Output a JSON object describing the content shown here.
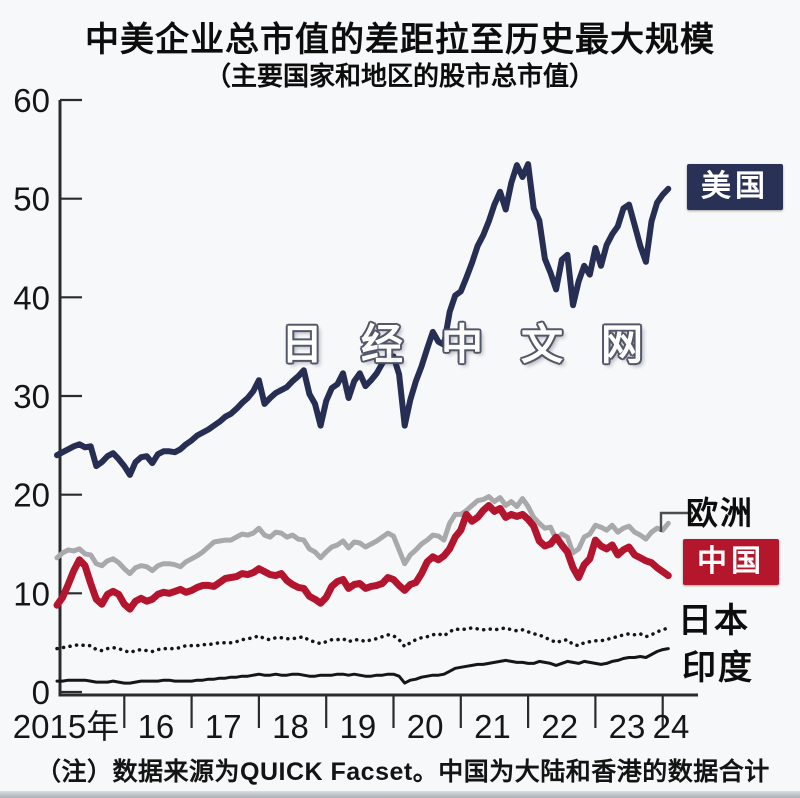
{
  "title": "中美企业总市值的差距拉至历史最大规模",
  "subtitle": "（主要国家和地区的股市总市值）",
  "watermark": "日经中文网",
  "footnote": "（注）数据来源为QUICK Facset。中国为大陆和香港的数据合计",
  "colors": {
    "us_navy": "#262e54",
    "china_red": "#b3142e",
    "europe_gray": "#a9a9ab",
    "black": "#161616",
    "axis": "#2b2b2b"
  },
  "chart_data": {
    "type": "line",
    "title": "中美企业总市值的差距拉至历史最大规模",
    "subtitle": "（主要国家和地区的股市总市值）",
    "x_start_year": 2015,
    "x_step_months": 1,
    "x_tick_labels": [
      "2015年",
      "16",
      "17",
      "18",
      "19",
      "20",
      "21",
      "22",
      "23",
      "24"
    ],
    "y_ticks": [
      0,
      10,
      20,
      30,
      40,
      50,
      60
    ],
    "ylim": [
      0,
      60
    ],
    "grid": false,
    "legend_position": "right-inline-labels",
    "series": [
      {
        "id": "us",
        "name": "美国",
        "color": "#262e54",
        "style": "solid",
        "width": 6,
        "values": [
          24.0,
          24.3,
          24.6,
          24.9,
          25.1,
          24.8,
          24.9,
          22.9,
          23.3,
          23.9,
          24.2,
          23.6,
          22.9,
          22.0,
          23.3,
          23.8,
          23.9,
          23.2,
          24.1,
          24.4,
          24.4,
          24.3,
          24.6,
          25.1,
          25.5,
          26.0,
          26.3,
          26.6,
          27.0,
          27.4,
          27.9,
          28.2,
          28.7,
          29.3,
          29.8,
          30.5,
          31.6,
          29.2,
          29.8,
          30.3,
          30.6,
          30.9,
          31.5,
          32.0,
          32.6,
          30.2,
          29.2,
          27.0,
          29.5,
          30.8,
          31.2,
          32.3,
          29.8,
          31.5,
          32.3,
          31.0,
          31.6,
          32.3,
          33.3,
          34.0,
          34.0,
          32.2,
          27.0,
          29.6,
          31.5,
          33.0,
          34.8,
          36.5,
          35.5,
          35.2,
          38.5,
          40.2,
          40.6,
          42.0,
          43.5,
          45.2,
          46.3,
          47.7,
          49.4,
          50.7,
          48.9,
          51.6,
          53.4,
          52.2,
          53.5,
          49.0,
          47.8,
          43.9,
          42.5,
          40.8,
          43.8,
          44.3,
          39.2,
          41.6,
          43.2,
          42.3,
          45.0,
          43.2,
          45.3,
          46.4,
          47.2,
          49.0,
          49.4,
          47.3,
          45.2,
          43.6,
          47.7,
          49.6,
          50.4,
          51.0
        ]
      },
      {
        "id": "europe",
        "name": "欧洲",
        "color": "#a9a9ab",
        "style": "solid",
        "width": 5,
        "values": [
          13.6,
          14.1,
          14.4,
          14.3,
          14.5,
          14.0,
          13.9,
          13.0,
          12.8,
          13.3,
          13.5,
          13.1,
          12.5,
          12.0,
          12.6,
          12.8,
          12.7,
          12.3,
          12.8,
          13.0,
          13.0,
          12.9,
          12.7,
          13.2,
          13.5,
          13.8,
          14.2,
          14.7,
          15.2,
          15.3,
          15.4,
          15.4,
          15.7,
          16.0,
          15.9,
          16.1,
          16.6,
          15.9,
          15.7,
          16.2,
          16.1,
          15.7,
          15.9,
          15.5,
          15.4,
          14.5,
          14.2,
          13.6,
          14.2,
          14.7,
          14.9,
          15.3,
          14.6,
          15.2,
          15.1,
          14.7,
          15.0,
          15.3,
          15.7,
          16.1,
          15.8,
          14.4,
          13.0,
          13.9,
          14.4,
          15.0,
          15.4,
          15.9,
          15.8,
          15.4,
          17.1,
          18.0,
          18.0,
          18.4,
          18.9,
          19.4,
          19.5,
          19.8,
          19.3,
          19.7,
          18.9,
          19.3,
          18.8,
          19.6,
          18.8,
          17.7,
          17.1,
          16.6,
          16.7,
          15.5,
          16.0,
          15.7,
          14.1,
          14.5,
          15.7,
          16.0,
          16.9,
          16.7,
          16.4,
          16.9,
          16.2,
          16.6,
          16.8,
          16.2,
          15.9,
          15.5,
          16.2,
          16.6,
          16.4,
          17.1
        ]
      },
      {
        "id": "china",
        "name": "中国",
        "color": "#b3142e",
        "style": "solid",
        "width": 7,
        "values": [
          8.8,
          9.6,
          10.9,
          12.3,
          13.4,
          12.8,
          11.0,
          9.4,
          8.9,
          9.9,
          10.2,
          9.9,
          8.9,
          8.4,
          9.2,
          9.5,
          9.2,
          9.4,
          9.9,
          10.1,
          10.0,
          10.2,
          10.4,
          10.1,
          10.3,
          10.6,
          10.8,
          10.8,
          10.7,
          11.1,
          11.5,
          11.6,
          11.7,
          12.0,
          11.9,
          12.1,
          12.5,
          12.2,
          11.9,
          11.8,
          12.0,
          11.3,
          10.9,
          10.6,
          10.5,
          9.7,
          9.4,
          9.0,
          9.6,
          10.7,
          11.2,
          11.4,
          10.5,
          10.9,
          11.0,
          10.5,
          10.7,
          10.8,
          11.0,
          11.6,
          11.4,
          10.8,
          10.3,
          10.9,
          11.1,
          12.0,
          13.2,
          13.7,
          13.4,
          13.8,
          14.5,
          15.7,
          16.4,
          18.0,
          17.3,
          17.7,
          18.4,
          18.9,
          18.3,
          18.6,
          17.7,
          18.0,
          17.8,
          18.0,
          17.5,
          16.8,
          15.3,
          14.8,
          15.0,
          15.7,
          14.9,
          14.2,
          12.6,
          11.6,
          12.9,
          13.5,
          15.4,
          14.8,
          14.5,
          14.9,
          13.9,
          14.4,
          14.7,
          13.9,
          13.6,
          13.3,
          13.1,
          12.6,
          12.2,
          11.8
        ]
      },
      {
        "id": "japan",
        "name": "日本",
        "color": "#161616",
        "style": "dotted",
        "width": 3.5,
        "values": [
          4.4,
          4.5,
          4.6,
          4.7,
          4.8,
          4.7,
          4.7,
          4.3,
          4.2,
          4.4,
          4.5,
          4.4,
          4.2,
          4.0,
          4.2,
          4.3,
          4.2,
          4.1,
          4.3,
          4.4,
          4.4,
          4.4,
          4.5,
          4.7,
          4.7,
          4.7,
          4.8,
          4.8,
          4.9,
          5.0,
          5.0,
          5.0,
          5.1,
          5.3,
          5.4,
          5.5,
          5.7,
          5.4,
          5.3,
          5.5,
          5.5,
          5.4,
          5.4,
          5.5,
          5.6,
          5.2,
          5.1,
          4.9,
          5.1,
          5.3,
          5.3,
          5.4,
          5.1,
          5.3,
          5.3,
          5.1,
          5.3,
          5.4,
          5.6,
          5.8,
          5.7,
          5.3,
          4.6,
          5.0,
          5.3,
          5.5,
          5.6,
          5.8,
          5.9,
          5.7,
          6.1,
          6.4,
          6.3,
          6.4,
          6.5,
          6.4,
          6.3,
          6.4,
          6.3,
          6.4,
          6.5,
          6.3,
          6.2,
          6.3,
          6.1,
          5.9,
          5.8,
          5.5,
          5.3,
          5.0,
          5.2,
          5.3,
          4.8,
          4.7,
          5.0,
          5.1,
          5.2,
          5.2,
          5.3,
          5.5,
          5.6,
          5.8,
          5.9,
          5.8,
          5.9,
          5.6,
          5.8,
          6.1,
          6.3,
          6.5
        ]
      },
      {
        "id": "india",
        "name": "印度",
        "color": "#161616",
        "style": "solid",
        "width": 3,
        "values": [
          1.1,
          1.1,
          1.2,
          1.2,
          1.2,
          1.2,
          1.1,
          1.0,
          1.0,
          1.0,
          1.1,
          1.0,
          0.9,
          0.9,
          1.0,
          1.1,
          1.1,
          1.1,
          1.1,
          1.2,
          1.2,
          1.1,
          1.1,
          1.1,
          1.1,
          1.2,
          1.2,
          1.3,
          1.3,
          1.4,
          1.4,
          1.5,
          1.5,
          1.6,
          1.6,
          1.7,
          1.8,
          1.7,
          1.7,
          1.8,
          1.7,
          1.7,
          1.8,
          1.8,
          1.7,
          1.6,
          1.6,
          1.7,
          1.7,
          1.7,
          1.8,
          1.8,
          1.7,
          1.8,
          1.7,
          1.6,
          1.6,
          1.7,
          1.7,
          1.8,
          1.8,
          1.6,
          0.9,
          1.2,
          1.3,
          1.5,
          1.6,
          1.7,
          1.7,
          1.8,
          2.1,
          2.4,
          2.5,
          2.6,
          2.7,
          2.8,
          2.8,
          2.9,
          3.0,
          3.1,
          3.2,
          3.1,
          3.0,
          3.0,
          2.9,
          2.9,
          3.1,
          3.0,
          2.9,
          2.7,
          2.9,
          3.1,
          3.0,
          2.9,
          3.1,
          3.0,
          2.9,
          2.8,
          2.9,
          3.1,
          3.2,
          3.4,
          3.5,
          3.5,
          3.6,
          3.5,
          3.8,
          4.1,
          4.3,
          4.4
        ]
      }
    ]
  }
}
